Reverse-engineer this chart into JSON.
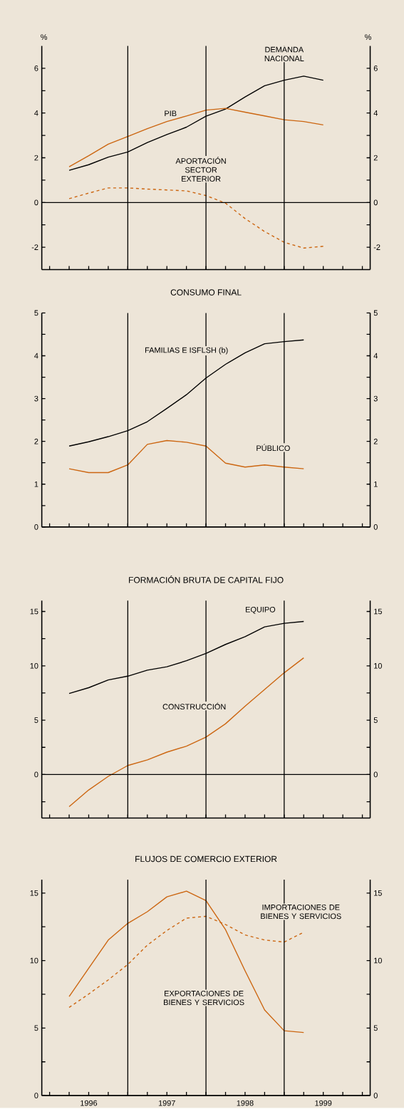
{
  "chart_data": [
    {
      "type": "line",
      "ylabel": "%",
      "y2label": "%",
      "tick_labels": "y",
      "x": [
        1995.75,
        1996,
        1996.25,
        1996.5,
        1996.75,
        1997,
        1997.25,
        1997.5,
        1997.75,
        1998,
        1998.25,
        1998.5,
        1998.75,
        1999
      ],
      "series": [
        {
          "name": "DEMANDA NACIONAL",
          "color": "#000000",
          "line_style": "solid",
          "values": [
            1.44,
            1.69,
            2.03,
            2.26,
            2.68,
            3.04,
            3.37,
            3.86,
            4.18,
            4.72,
            5.22,
            5.47,
            5.65,
            5.47
          ]
        },
        {
          "name": "PIB",
          "color": "#cc6611",
          "line_style": "solid",
          "values": [
            1.6,
            2.09,
            2.61,
            2.95,
            3.3,
            3.62,
            3.87,
            4.13,
            4.21,
            4.04,
            3.87,
            3.7,
            3.62,
            3.47
          ]
        },
        {
          "name": "APORTACIÓN SECTOR EXTERIOR",
          "color": "#cc6611",
          "line_style": "dashed",
          "values": [
            0.17,
            0.42,
            0.65,
            0.65,
            0.6,
            0.56,
            0.52,
            0.31,
            -0.03,
            -0.72,
            -1.3,
            -1.78,
            -2.04,
            -1.96
          ]
        }
      ],
      "xlim": [
        1995.4,
        1999.6
      ],
      "xticks": [
        {
          "value": 1995.5,
          "label": null
        },
        {
          "value": 1995.75,
          "label": null
        },
        1996,
        {
          "value": 1996.25,
          "label": null
        },
        {
          "value": 1996.5,
          "label": null
        },
        {
          "value": 1996.75,
          "label": null
        },
        1997,
        {
          "value": 1997.25,
          "label": null
        },
        {
          "value": 1997.5,
          "label": null
        },
        {
          "value": 1997.75,
          "label": null
        },
        1998,
        {
          "value": 1998.25,
          "label": null
        },
        {
          "value": 1998.5,
          "label": null
        },
        {
          "value": 1998.75,
          "label": null
        },
        1999,
        {
          "value": 1999.25,
          "label": null
        },
        {
          "value": 1999.5,
          "label": null
        }
      ],
      "ylim": [
        -3,
        7
      ],
      "yticks": [
        -2,
        {
          "value": -1,
          "label": null
        },
        0,
        {
          "value": 1,
          "label": null
        },
        2,
        {
          "value": 3,
          "label": null
        },
        4,
        {
          "value": 5,
          "label": null
        },
        6
      ],
      "y2lim": [
        -3,
        7
      ],
      "y2ticks": [
        -2,
        {
          "value": -1,
          "label": null
        },
        0,
        {
          "value": 1,
          "label": null
        },
        2,
        {
          "value": 3,
          "label": null
        },
        4,
        {
          "value": 5,
          "label": null
        },
        6
      ],
      "ref_lines": [
        {
          "axis": "y",
          "value": 0,
          "color": "#000000"
        },
        {
          "axis": "x",
          "value": 1996.5,
          "color": "#000000"
        },
        {
          "axis": "x",
          "value": 1997.5,
          "color": "#000000"
        },
        {
          "axis": "x",
          "value": 1998.5,
          "color": "#000000"
        }
      ]
    },
    {
      "type": "line",
      "title": "CONSUMO FINAL",
      "tick_labels": "y",
      "x": [
        1995.75,
        1996,
        1996.25,
        1996.5,
        1996.75,
        1997,
        1997.25,
        1997.5,
        1997.75,
        1998,
        1998.25,
        1998.5,
        1998.75
      ],
      "series": [
        {
          "name": "FAMILIAS E ISFLSH (b)",
          "color": "#000000",
          "line_style": "solid",
          "values": [
            1.89,
            1.99,
            2.11,
            2.25,
            2.46,
            2.77,
            3.09,
            3.48,
            3.8,
            4.07,
            4.28,
            4.33,
            4.37
          ]
        },
        {
          "name": "PÚBLICO",
          "color": "#cc6611",
          "line_style": "solid",
          "values": [
            1.36,
            1.27,
            1.27,
            1.45,
            1.93,
            2.02,
            1.98,
            1.89,
            1.49,
            1.4,
            1.45,
            1.4,
            1.36
          ]
        }
      ],
      "xlim": [
        1995.4,
        1999.6
      ],
      "xticks": [
        {
          "value": 1995.5,
          "label": null
        },
        {
          "value": 1995.75,
          "label": null
        },
        1996,
        {
          "value": 1996.25,
          "label": null
        },
        {
          "value": 1996.5,
          "label": null
        },
        {
          "value": 1996.75,
          "label": null
        },
        1997,
        {
          "value": 1997.25,
          "label": null
        },
        {
          "value": 1997.5,
          "label": null
        },
        {
          "value": 1997.75,
          "label": null
        },
        1998,
        {
          "value": 1998.25,
          "label": null
        },
        {
          "value": 1998.5,
          "label": null
        },
        {
          "value": 1998.75,
          "label": null
        },
        1999,
        {
          "value": 1999.25,
          "label": null
        },
        {
          "value": 1999.5,
          "label": null
        }
      ],
      "ylim": [
        0,
        5
      ],
      "yticks": [
        0,
        {
          "value": 0.5,
          "label": null
        },
        1,
        {
          "value": 1.5,
          "label": null
        },
        2,
        {
          "value": 2.5,
          "label": null
        },
        3,
        {
          "value": 3.5,
          "label": null
        },
        4,
        {
          "value": 4.5,
          "label": null
        },
        5
      ],
      "y2lim": [
        0,
        5
      ],
      "y2ticks": [
        0,
        {
          "value": 0.5,
          "label": null
        },
        1,
        {
          "value": 1.5,
          "label": null
        },
        2,
        {
          "value": 2.5,
          "label": null
        },
        3,
        {
          "value": 3.5,
          "label": null
        },
        4,
        {
          "value": 4.5,
          "label": null
        },
        5
      ],
      "ref_lines": [
        {
          "axis": "x",
          "value": 1996.5,
          "color": "#000000"
        },
        {
          "axis": "x",
          "value": 1997.5,
          "color": "#000000"
        },
        {
          "axis": "x",
          "value": 1998.5,
          "color": "#000000"
        }
      ]
    },
    {
      "type": "line",
      "title": "FORMACIÓN BRUTA DE CAPITAL FIJO",
      "tick_labels": "y",
      "x": [
        1995.75,
        1996,
        1996.25,
        1996.5,
        1996.75,
        1997,
        1997.25,
        1997.5,
        1997.75,
        1998,
        1998.25,
        1998.5,
        1998.75
      ],
      "series": [
        {
          "name": "EQUIPO",
          "color": "#000000",
          "line_style": "solid",
          "values": [
            7.46,
            7.99,
            8.7,
            9.05,
            9.6,
            9.91,
            10.47,
            11.14,
            11.97,
            12.68,
            13.58,
            13.91,
            14.08
          ]
        },
        {
          "name": "CONSTRUCCIÓN",
          "color": "#cc6611",
          "line_style": "solid",
          "values": [
            -2.96,
            -1.42,
            -0.17,
            0.83,
            1.35,
            2.06,
            2.61,
            3.44,
            4.67,
            6.28,
            7.82,
            9.36,
            10.73
          ]
        }
      ],
      "xlim": [
        1995.4,
        1999.6
      ],
      "xticks": [
        {
          "value": 1995.5,
          "label": null
        },
        {
          "value": 1995.75,
          "label": null
        },
        1996,
        {
          "value": 1996.25,
          "label": null
        },
        {
          "value": 1996.5,
          "label": null
        },
        {
          "value": 1996.75,
          "label": null
        },
        1997,
        {
          "value": 1997.25,
          "label": null
        },
        {
          "value": 1997.5,
          "label": null
        },
        {
          "value": 1997.75,
          "label": null
        },
        1998,
        {
          "value": 1998.25,
          "label": null
        },
        {
          "value": 1998.5,
          "label": null
        },
        {
          "value": 1998.75,
          "label": null
        },
        1999,
        {
          "value": 1999.25,
          "label": null
        },
        {
          "value": 1999.5,
          "label": null
        }
      ],
      "ylim": [
        -4,
        16
      ],
      "yticks": [
        {
          "value": -2.5,
          "label": null
        },
        0,
        {
          "value": 2.5,
          "label": null
        },
        5,
        {
          "value": 7.5,
          "label": null
        },
        10,
        {
          "value": 12.5,
          "label": null
        },
        15
      ],
      "y2lim": [
        -4,
        16
      ],
      "y2ticks": [
        {
          "value": -2.5,
          "label": null
        },
        0,
        {
          "value": 2.5,
          "label": null
        },
        5,
        {
          "value": 7.5,
          "label": null
        },
        10,
        {
          "value": 12.5,
          "label": null
        },
        15
      ],
      "ref_lines": [
        {
          "axis": "y",
          "value": 0,
          "color": "#000000"
        },
        {
          "axis": "x",
          "value": 1996.5,
          "color": "#000000"
        },
        {
          "axis": "x",
          "value": 1997.5,
          "color": "#000000"
        },
        {
          "axis": "x",
          "value": 1998.5,
          "color": "#000000"
        }
      ]
    },
    {
      "type": "line",
      "title": "FLUJOS DE COMERCIO EXTERIOR",
      "x": [
        1995.75,
        1996,
        1996.25,
        1996.5,
        1996.75,
        1997,
        1997.25,
        1997.5,
        1997.75,
        1998,
        1998.25,
        1998.5,
        1998.75
      ],
      "series": [
        {
          "name": "EXPORTACIONES DE BIENES Y SERVICIOS",
          "color": "#cc6611",
          "line_style": "solid",
          "values": [
            7.33,
            9.43,
            11.52,
            12.76,
            13.62,
            14.72,
            15.14,
            14.44,
            12.29,
            9.24,
            6.34,
            4.8,
            4.67
          ]
        },
        {
          "name": "IMPORTACIONES DE BIENES Y SERVICIOS",
          "color": "#cc6611",
          "line_style": "dashed",
          "values": [
            6.53,
            7.52,
            8.57,
            9.71,
            11.14,
            12.23,
            13.14,
            13.28,
            12.67,
            11.9,
            11.52,
            11.37,
            12.1
          ]
        }
      ],
      "xlim": [
        1995.4,
        1999.6
      ],
      "xticks": [
        {
          "value": 1995.5,
          "label": null
        },
        {
          "value": 1995.75,
          "label": null
        },
        1996,
        {
          "value": 1996.25,
          "label": null
        },
        {
          "value": 1996.5,
          "label": null
        },
        {
          "value": 1996.75,
          "label": null
        },
        1997,
        {
          "value": 1997.25,
          "label": null
        },
        {
          "value": 1997.5,
          "label": null
        },
        {
          "value": 1997.75,
          "label": null
        },
        1998,
        {
          "value": 1998.25,
          "label": null
        },
        {
          "value": 1998.5,
          "label": null
        },
        {
          "value": 1998.75,
          "label": null
        },
        1999,
        {
          "value": 1999.25,
          "label": null
        },
        {
          "value": 1999.5,
          "label": null
        }
      ],
      "ylim": [
        0,
        16
      ],
      "yticks": [
        0,
        {
          "value": 2.5,
          "label": null
        },
        5,
        {
          "value": 7.5,
          "label": null
        },
        10,
        {
          "value": 12.5,
          "label": null
        },
        15
      ],
      "y2lim": [
        0,
        16
      ],
      "y2ticks": [
        0,
        {
          "value": 2.5,
          "label": null
        },
        5,
        {
          "value": 7.5,
          "label": null
        },
        10,
        {
          "value": 12.5,
          "label": null
        },
        15
      ],
      "ref_lines": [
        {
          "axis": "x",
          "value": 1996.5,
          "color": "#000000"
        },
        {
          "axis": "x",
          "value": 1997.5,
          "color": "#000000"
        },
        {
          "axis": "x",
          "value": 1998.5,
          "color": "#000000"
        }
      ]
    }
  ]
}
